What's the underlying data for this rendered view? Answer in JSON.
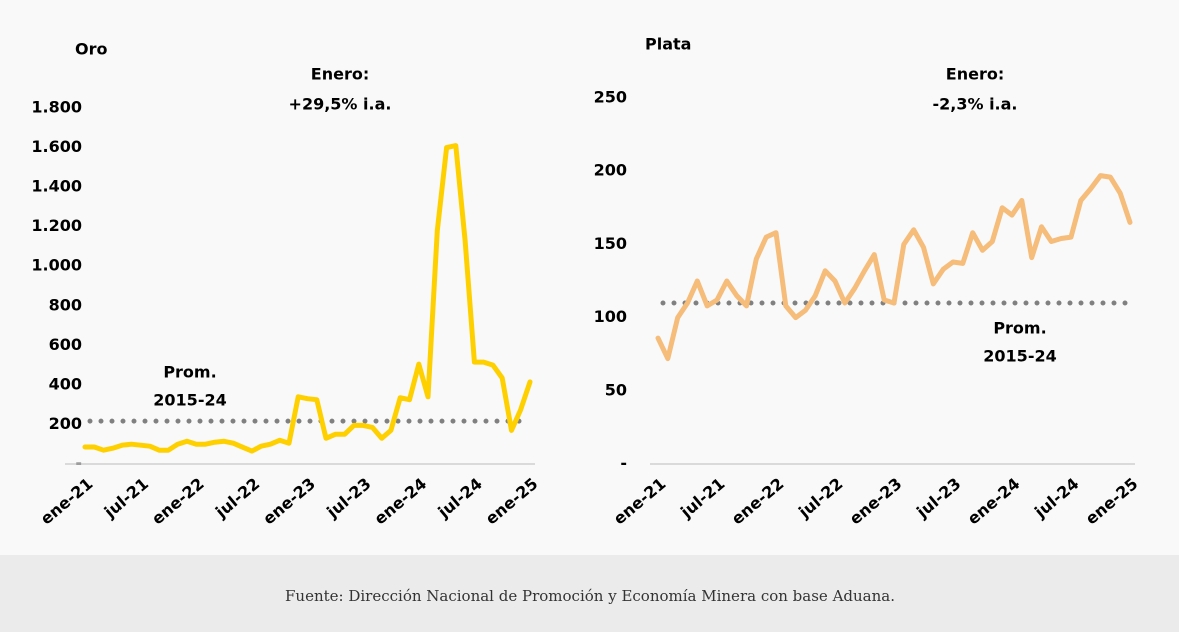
{
  "chart_data": [
    {
      "type": "line",
      "title": "Oro",
      "color": "#ffd000",
      "categories": [
        "ene-21",
        null,
        null,
        null,
        null,
        null,
        "jul-21",
        null,
        null,
        null,
        null,
        null,
        "ene-22",
        null,
        null,
        null,
        null,
        null,
        "jul-22",
        null,
        null,
        null,
        null,
        null,
        "ene-23",
        null,
        null,
        null,
        null,
        null,
        "jul-23",
        null,
        null,
        null,
        null,
        null,
        "ene-24",
        null,
        null,
        null,
        null,
        null,
        "jul-24",
        null,
        null,
        null,
        null,
        null,
        "ene-25"
      ],
      "values": [
        86,
        86,
        70,
        80,
        95,
        100,
        95,
        90,
        70,
        70,
        100,
        115,
        100,
        100,
        110,
        115,
        105,
        85,
        65,
        90,
        100,
        120,
        105,
        340,
        330,
        325,
        130,
        150,
        150,
        195,
        195,
        185,
        130,
        170,
        335,
        325,
        505,
        340,
        1180,
        1600,
        1610,
        1130,
        515,
        515,
        500,
        435,
        170,
        275,
        415
      ],
      "ylim": [
        0,
        1800
      ],
      "yticks": [
        {
          "value": 0,
          "label": "-"
        },
        200,
        400,
        600,
        800,
        {
          "value": 1000,
          "label": "1.000"
        },
        {
          "value": 1200,
          "label": "1.200"
        },
        {
          "value": 1400,
          "label": "1.400"
        },
        {
          "value": 1600,
          "label": "1.600"
        },
        {
          "value": 1800,
          "label": "1.800"
        }
      ],
      "reference_line": {
        "value": 217,
        "label": [
          "Prom.",
          "2015-24"
        ]
      },
      "annotation": [
        "Enero:",
        "+29,5% i.a."
      ]
    },
    {
      "type": "line",
      "title": "Plata",
      "color": "#f5bc7a",
      "categories": [
        "ene-21",
        null,
        null,
        null,
        null,
        null,
        "jul-21",
        null,
        null,
        null,
        null,
        null,
        "ene-22",
        null,
        null,
        null,
        null,
        null,
        "jul-22",
        null,
        null,
        null,
        null,
        null,
        "ene-23",
        null,
        null,
        null,
        null,
        null,
        "jul-23",
        null,
        null,
        null,
        null,
        null,
        "ene-24",
        null,
        null,
        null,
        null,
        null,
        "jul-24",
        null,
        null,
        null,
        null,
        null,
        "ene-25"
      ],
      "values": [
        86,
        72,
        100,
        110,
        125,
        108,
        112,
        125,
        115,
        108,
        140,
        155,
        158,
        108,
        100,
        105,
        115,
        132,
        125,
        110,
        120,
        132,
        143,
        112,
        110,
        150,
        160,
        148,
        123,
        133,
        138,
        137,
        158,
        146,
        152,
        175,
        170,
        180,
        141,
        162,
        152,
        154,
        155,
        180,
        188,
        197,
        196,
        185,
        165
      ],
      "ylim": [
        0,
        250
      ],
      "yticks": [
        {
          "value": 0,
          "label": "-"
        },
        50,
        100,
        150,
        200,
        250
      ],
      "reference_line": {
        "value": 110,
        "label": [
          "Prom.",
          "2015-24"
        ]
      },
      "annotation": [
        "Enero:",
        "-2,3% i.a."
      ]
    }
  ],
  "source": "Fuente: Dirección Nacional de Promoción y Economía Minera con base Aduana."
}
